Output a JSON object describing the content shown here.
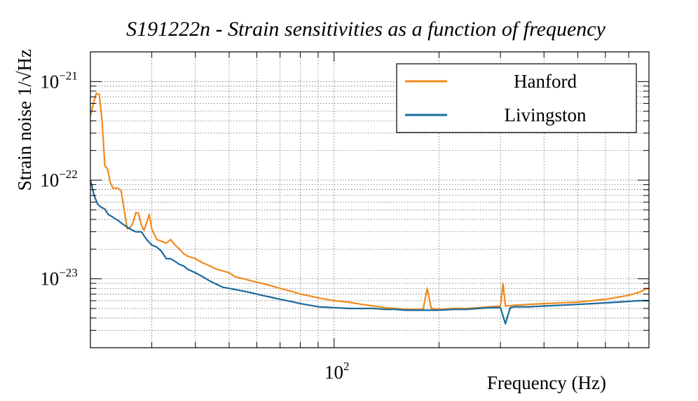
{
  "chart_data": {
    "type": "line",
    "title": "S191222n - Strain sensitivities as a function of frequency",
    "xlabel": "Frequency (Hz)",
    "ylabel": "Strain noise 1/√Hz",
    "xscale": "log",
    "yscale": "log",
    "xlim": [
      20,
      800
    ],
    "ylim": [
      2e-24,
      2e-21
    ],
    "grid": true,
    "legend_position": "top-right",
    "x_tick_labels": [
      {
        "value": 100,
        "base": "10",
        "exp": "2"
      }
    ],
    "y_tick_labels": [
      {
        "value": 1e-21,
        "base": "10",
        "exp": "−21"
      },
      {
        "value": 1e-22,
        "base": "10",
        "exp": "−22"
      },
      {
        "value": 1e-23,
        "base": "10",
        "exp": "−23"
      }
    ],
    "series": [
      {
        "name": "Hanford",
        "color": "#f28a1c",
        "x": [
          20,
          20.4,
          20.8,
          21.2,
          21.6,
          22,
          22.4,
          22.8,
          23.2,
          23.6,
          24,
          24.5,
          25,
          25.5,
          26,
          26.5,
          27,
          27.5,
          28,
          28.5,
          29,
          29.5,
          30,
          31,
          32,
          33,
          34,
          35,
          36,
          37,
          38,
          40,
          42,
          44,
          46,
          48,
          50,
          52,
          55,
          58,
          62,
          66,
          70,
          75,
          80,
          85,
          90,
          100,
          110,
          120,
          130,
          140,
          150,
          160,
          170,
          180,
          185,
          190,
          200,
          220,
          240,
          260,
          280,
          300,
          305,
          310,
          330,
          360,
          400,
          450,
          500,
          550,
          600,
          650,
          700,
          750,
          780,
          800
        ],
        "y": [
          4.5e-22,
          6e-22,
          7.6e-22,
          7.4e-22,
          4e-22,
          1.4e-22,
          1.3e-22,
          9.5e-23,
          8.3e-23,
          8.3e-23,
          8.3e-23,
          7.8e-23,
          5e-23,
          3.2e-23,
          3.3e-23,
          3.7e-23,
          4.7e-23,
          4.6e-23,
          3.5e-23,
          3.1e-23,
          3.7e-23,
          4.5e-23,
          3.2e-23,
          2.5e-23,
          2.4e-23,
          2.3e-23,
          2.5e-23,
          2.2e-23,
          2e-23,
          1.8e-23,
          1.7e-23,
          1.6e-23,
          1.45e-23,
          1.35e-23,
          1.25e-23,
          1.2e-23,
          1.15e-23,
          1.05e-23,
          1e-23,
          9.5e-24,
          9e-24,
          8.5e-24,
          8e-24,
          7.5e-24,
          7e-24,
          6.7e-24,
          6.4e-24,
          6e-24,
          5.8e-24,
          5.5e-24,
          5.3e-24,
          5.1e-24,
          5e-24,
          4.9e-24,
          4.9e-24,
          4.9e-24,
          8e-24,
          5e-24,
          4.9e-24,
          5e-24,
          5e-24,
          5.1e-24,
          5.2e-24,
          5.3e-24,
          9e-24,
          5.3e-24,
          5.4e-24,
          5.5e-24,
          5.6e-24,
          5.7e-24,
          5.8e-24,
          6e-24,
          6.2e-24,
          6.5e-24,
          6.8e-24,
          7.3e-24,
          7.8e-24,
          8e-24
        ]
      },
      {
        "name": "Livingston",
        "color": "#1a6a9c",
        "x": [
          20,
          20.5,
          21,
          21.5,
          22,
          22.5,
          23,
          24,
          25,
          26,
          27,
          28,
          29,
          30,
          31,
          32,
          33,
          34,
          35,
          36,
          37,
          38,
          40,
          42,
          44,
          46,
          48,
          50,
          52,
          55,
          58,
          62,
          66,
          70,
          75,
          80,
          85,
          90,
          100,
          110,
          120,
          130,
          140,
          150,
          160,
          170,
          180,
          200,
          220,
          240,
          260,
          280,
          300,
          310,
          320,
          330,
          360,
          400,
          450,
          500,
          550,
          600,
          650,
          700,
          750,
          800
        ],
        "y": [
          1e-22,
          7e-23,
          5.7e-23,
          5.3e-23,
          5.1e-23,
          4.5e-23,
          4.3e-23,
          3.9e-23,
          3.5e-23,
          3.2e-23,
          3e-23,
          3e-23,
          2.5e-23,
          2.2e-23,
          2.1e-23,
          1.9e-23,
          1.6e-23,
          1.6e-23,
          1.5e-23,
          1.4e-23,
          1.35e-23,
          1.25e-23,
          1.15e-23,
          1.05e-23,
          9.5e-24,
          8.8e-24,
          8.2e-24,
          8e-24,
          7.8e-24,
          7.5e-24,
          7.2e-24,
          6.8e-24,
          6.5e-24,
          6.2e-24,
          5.9e-24,
          5.6e-24,
          5.4e-24,
          5.2e-24,
          5.1e-24,
          5e-24,
          5e-24,
          5e-24,
          4.9e-24,
          4.9e-24,
          4.8e-24,
          4.8e-24,
          4.8e-24,
          4.8e-24,
          4.9e-24,
          4.9e-24,
          5e-24,
          5.1e-24,
          5.1e-24,
          3.5e-24,
          5.1e-24,
          5.2e-24,
          5.2e-24,
          5.3e-24,
          5.4e-24,
          5.5e-24,
          5.6e-24,
          5.7e-24,
          5.8e-24,
          5.9e-24,
          6e-24,
          6e-24
        ]
      }
    ]
  }
}
